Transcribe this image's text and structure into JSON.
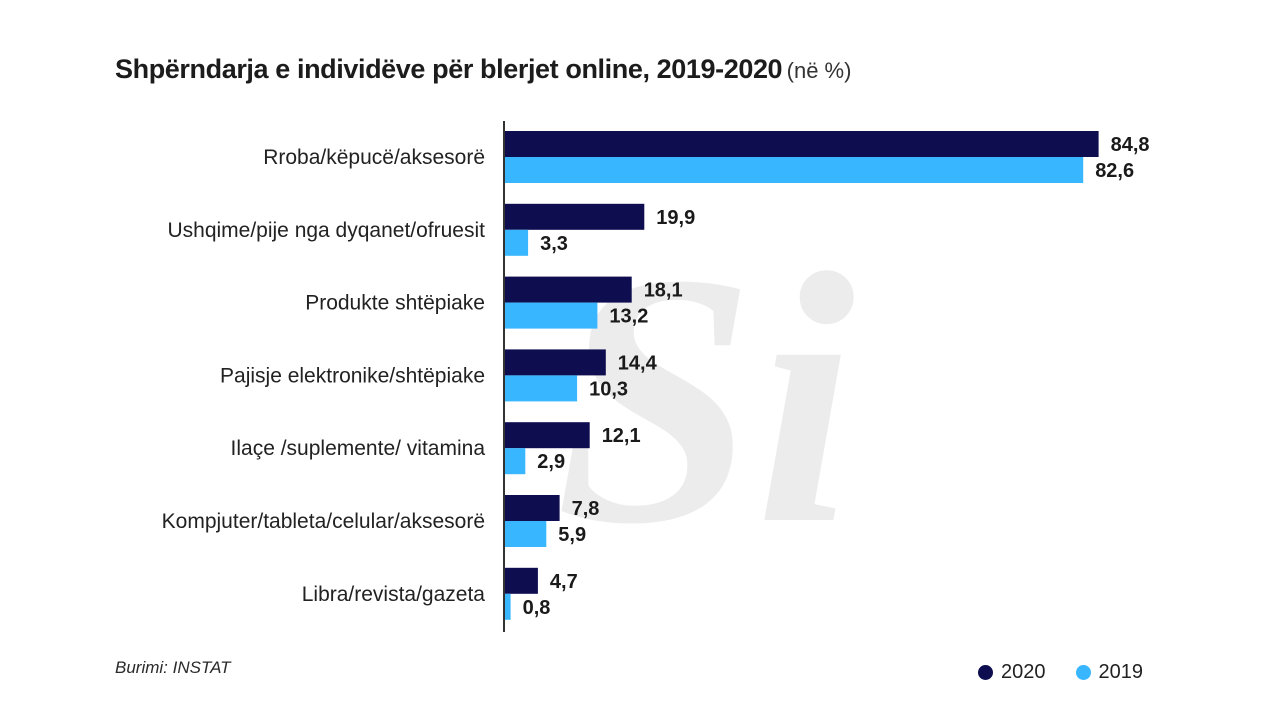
{
  "header": {
    "title": "Shpërndarja e individëve për blerjet online, 2019-2020",
    "unit": "(në %)"
  },
  "footer": {
    "source": "Burimi: INSTAT"
  },
  "colors": {
    "series_2020": "#0d0d4f",
    "series_2019": "#38b6ff",
    "axis": "#333333"
  },
  "chart_data": {
    "type": "bar",
    "orientation": "horizontal",
    "title": "Shpërndarja e individëve për blerjet online, 2019-2020",
    "unit": "(në %)",
    "categories": [
      "Rroba/këpucë/aksesorë",
      "Ushqime/pije nga dyqanet/ofruesit",
      "Produkte shtëpiake",
      "Pajisje elektronike/shtëpiake",
      "Ilaçe /suplemente/ vitamina",
      "Kompjuter/tableta/celular/aksesorë",
      "Libra/revista/gazeta"
    ],
    "series": [
      {
        "name": "2020",
        "values": [
          84.8,
          19.9,
          18.1,
          14.4,
          12.1,
          7.8,
          4.7
        ],
        "labels": [
          "84,8",
          "19,9",
          "18,1",
          "14,4",
          "12,1",
          "7,8",
          "4,7"
        ]
      },
      {
        "name": "2019",
        "values": [
          82.6,
          3.3,
          13.2,
          10.3,
          2.9,
          5.9,
          0.8
        ],
        "labels": [
          "82,6",
          "3,3",
          "13,2",
          "10,3",
          "2,9",
          "5,9",
          "0,8"
        ]
      }
    ],
    "xlim": [
      0,
      100
    ],
    "grid": false,
    "legend": "bottom-right",
    "watermark": "Si"
  }
}
